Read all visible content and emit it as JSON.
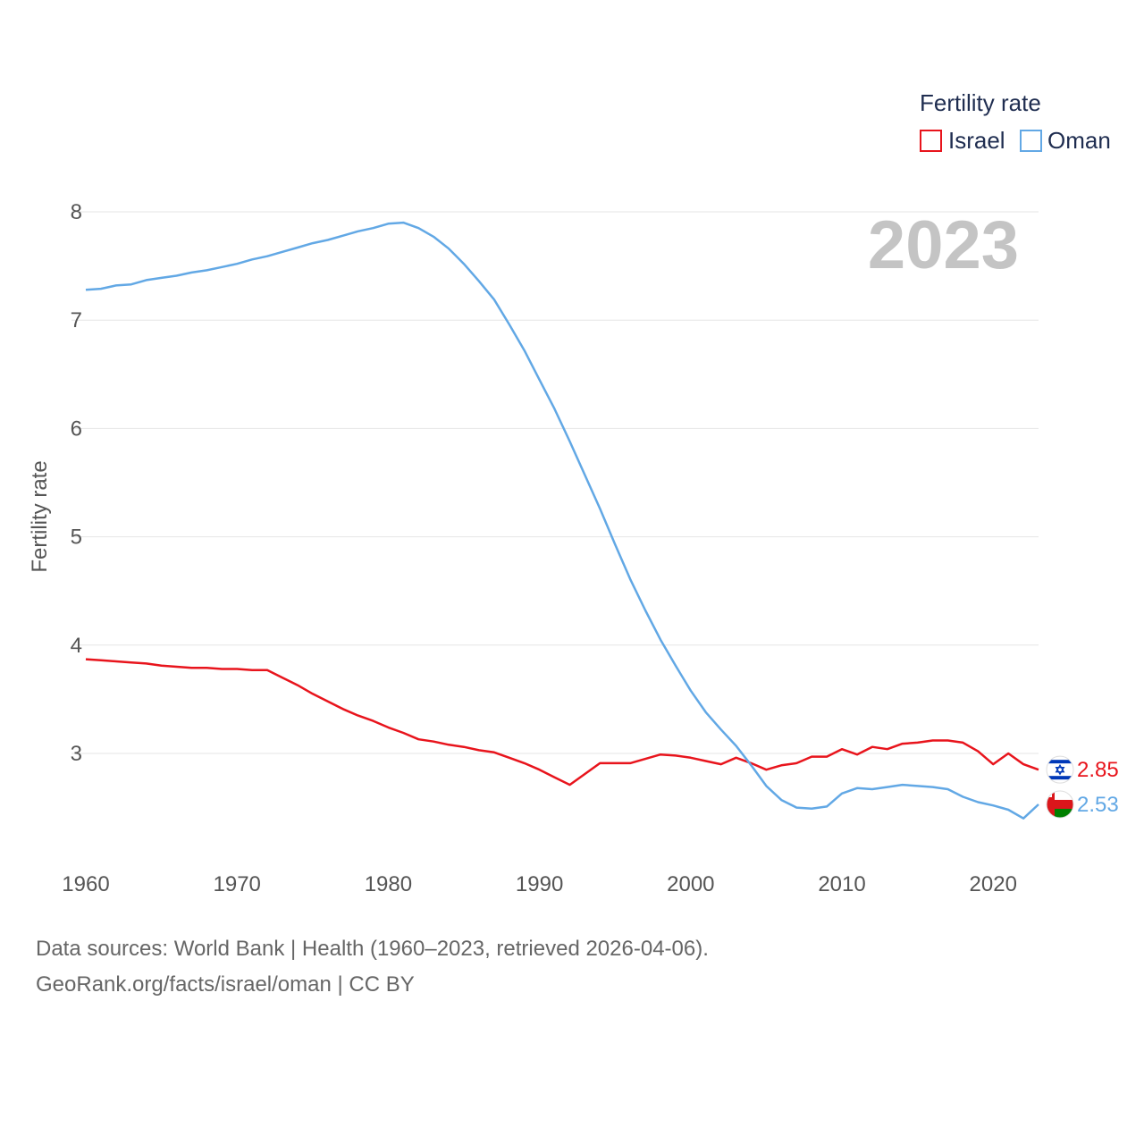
{
  "chart_data": {
    "type": "line",
    "title": "Fertility rate",
    "year_label": "2023",
    "ylabel": "Fertility rate",
    "xlabel": "",
    "xlim": [
      1960,
      2023
    ],
    "ylim": [
      2.0,
      8.2
    ],
    "x_ticks": [
      "1960",
      "1970",
      "1980",
      "1990",
      "2000",
      "2010",
      "2020"
    ],
    "y_ticks": [
      "3",
      "4",
      "5",
      "6",
      "7",
      "8"
    ],
    "grid": true,
    "legend_position": "top-right",
    "x": [
      1960,
      1961,
      1962,
      1963,
      1964,
      1965,
      1966,
      1967,
      1968,
      1969,
      1970,
      1971,
      1972,
      1973,
      1974,
      1975,
      1976,
      1977,
      1978,
      1979,
      1980,
      1981,
      1982,
      1983,
      1984,
      1985,
      1986,
      1987,
      1988,
      1989,
      1990,
      1991,
      1992,
      1993,
      1994,
      1995,
      1996,
      1997,
      1998,
      1999,
      2000,
      2001,
      2002,
      2003,
      2004,
      2005,
      2006,
      2007,
      2008,
      2009,
      2010,
      2011,
      2012,
      2013,
      2014,
      2015,
      2016,
      2017,
      2018,
      2019,
      2020,
      2021,
      2022,
      2023
    ],
    "series": [
      {
        "name": "Israel",
        "color": "#e8141c",
        "end_label": "2.85",
        "flag": "israel-flag",
        "values": [
          3.87,
          3.86,
          3.85,
          3.84,
          3.83,
          3.81,
          3.8,
          3.79,
          3.79,
          3.78,
          3.78,
          3.77,
          3.77,
          3.7,
          3.63,
          3.55,
          3.48,
          3.41,
          3.35,
          3.3,
          3.24,
          3.19,
          3.13,
          3.11,
          3.08,
          3.06,
          3.03,
          3.01,
          2.96,
          2.91,
          2.85,
          2.78,
          2.71,
          2.81,
          2.91,
          2.91,
          2.91,
          2.95,
          2.99,
          2.98,
          2.96,
          2.93,
          2.9,
          2.96,
          2.91,
          2.85,
          2.89,
          2.91,
          2.97,
          2.97,
          3.04,
          2.99,
          3.06,
          3.04,
          3.09,
          3.1,
          3.12,
          3.12,
          3.1,
          3.02,
          2.9,
          3.0,
          2.9,
          2.85
        ]
      },
      {
        "name": "Oman",
        "color": "#62a8e5",
        "end_label": "2.53",
        "flag": "oman-flag",
        "values": [
          7.28,
          7.29,
          7.32,
          7.33,
          7.37,
          7.39,
          7.41,
          7.44,
          7.46,
          7.49,
          7.52,
          7.56,
          7.59,
          7.63,
          7.67,
          7.71,
          7.74,
          7.78,
          7.82,
          7.85,
          7.89,
          7.9,
          7.85,
          7.77,
          7.66,
          7.52,
          7.36,
          7.19,
          6.96,
          6.72,
          6.45,
          6.18,
          5.88,
          5.57,
          5.26,
          4.93,
          4.61,
          4.32,
          4.05,
          3.81,
          3.58,
          3.38,
          3.22,
          3.07,
          2.89,
          2.7,
          2.57,
          2.5,
          2.49,
          2.51,
          2.63,
          2.68,
          2.67,
          2.69,
          2.71,
          2.7,
          2.69,
          2.67,
          2.6,
          2.55,
          2.52,
          2.48,
          2.4,
          2.53
        ]
      }
    ]
  },
  "footer": {
    "line1": "Data sources: World Bank | Health (1960–2023, retrieved 2026-04-06).",
    "line2": "GeoRank.org/facts/israel/oman | CC BY"
  }
}
